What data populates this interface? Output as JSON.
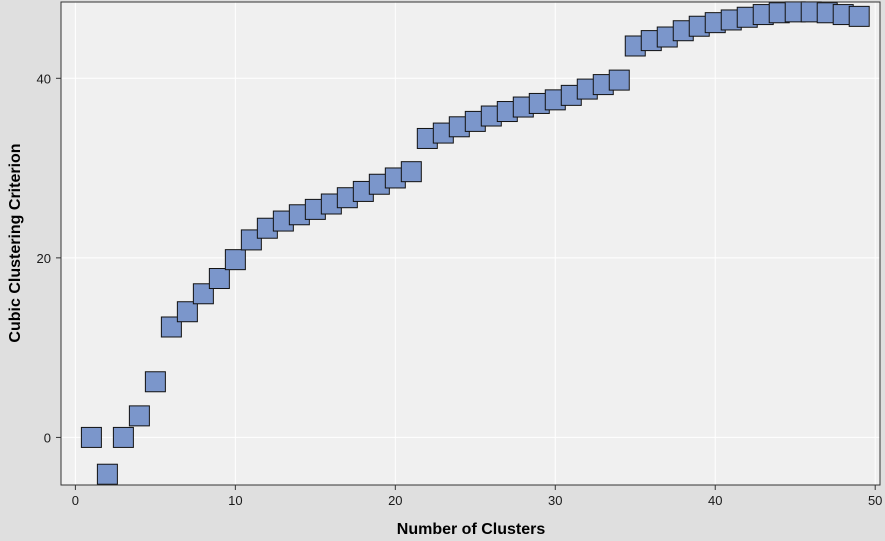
{
  "chart_data": {
    "type": "scatter",
    "xlabel": "Number of Clusters",
    "ylabel": "Cubic Clustering Criterion",
    "xlim": [
      -0.9,
      50.3
    ],
    "ylim": [
      -5.3,
      48.5
    ],
    "xticks": [
      0,
      10,
      20,
      30,
      40,
      50
    ],
    "yticks": [
      0,
      20,
      40
    ],
    "xtick_labels": [
      "0",
      "10",
      "20",
      "30",
      "40",
      "50"
    ],
    "ytick_labels": [
      "0",
      "20",
      "40"
    ],
    "grid": true,
    "marker": "square",
    "series": [
      {
        "x": [
          1,
          2,
          3,
          4,
          5,
          6,
          7,
          8,
          9,
          10,
          11,
          12,
          13,
          14,
          15,
          16,
          17,
          18,
          19,
          20,
          21,
          22,
          23,
          24,
          25,
          26,
          27,
          28,
          29,
          30,
          31,
          32,
          33,
          34,
          35,
          36,
          37,
          38,
          39,
          40,
          41,
          42,
          43,
          44,
          45,
          46,
          47,
          48,
          49
        ],
        "values": [
          0.0,
          -4.1,
          0.0,
          2.4,
          6.2,
          12.3,
          14.0,
          16.0,
          17.7,
          19.8,
          22.0,
          23.3,
          24.1,
          24.8,
          25.4,
          26.0,
          26.7,
          27.4,
          28.2,
          28.9,
          29.6,
          33.3,
          33.9,
          34.6,
          35.2,
          35.8,
          36.3,
          36.8,
          37.2,
          37.6,
          38.1,
          38.8,
          39.3,
          39.8,
          43.6,
          44.2,
          44.6,
          45.3,
          45.8,
          46.2,
          46.5,
          46.8,
          47.1,
          47.3,
          47.4,
          47.4,
          47.3,
          47.1,
          46.9
        ]
      }
    ],
    "colors": {
      "marker_fill": "#7b96cb",
      "marker_stroke": "#111111",
      "plot_bg": "#f0f0f0",
      "grid": "#ffffff",
      "page_bg": "#dfdfdf"
    }
  }
}
